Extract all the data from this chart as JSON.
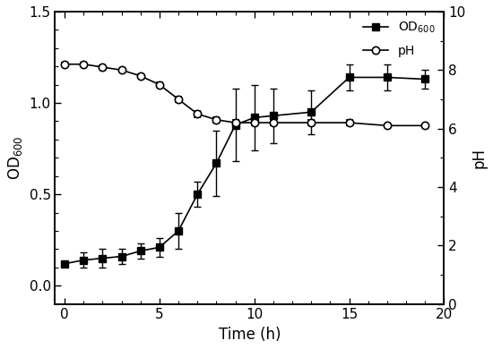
{
  "od_x": [
    0,
    1,
    2,
    3,
    4,
    5,
    6,
    7,
    8,
    9,
    10,
    11,
    13,
    15,
    17,
    19
  ],
  "od_y": [
    0.12,
    0.14,
    0.15,
    0.16,
    0.19,
    0.21,
    0.3,
    0.5,
    0.67,
    0.88,
    0.92,
    0.93,
    0.95,
    1.14,
    1.14,
    1.13
  ],
  "od_yerr": [
    0.01,
    0.04,
    0.05,
    0.04,
    0.04,
    0.05,
    0.1,
    0.07,
    0.18,
    0.2,
    0.18,
    0.15,
    0.12,
    0.07,
    0.07,
    0.05
  ],
  "ph_x": [
    0,
    1,
    2,
    3,
    4,
    5,
    6,
    7,
    8,
    9,
    10,
    11,
    13,
    15,
    17,
    19
  ],
  "ph_y": [
    8.2,
    8.2,
    8.1,
    8.0,
    7.8,
    7.5,
    7.0,
    6.5,
    6.3,
    6.2,
    6.2,
    6.2,
    6.2,
    6.2,
    6.1,
    6.1
  ],
  "ph_yerr": [
    0.05,
    0.05,
    0.05,
    0.05,
    0.05,
    0.08,
    0.1,
    0.1,
    0.1,
    0.1,
    0.1,
    0.1,
    0.1,
    0.1,
    0.05,
    0.05
  ],
  "od_label": "OD$_{600}$",
  "ph_label": "pH",
  "xlabel": "Time (h)",
  "ylabel_left": "OD$_{600}$",
  "ylabel_right": "pH",
  "xlim": [
    -0.5,
    20
  ],
  "ylim_left": [
    -0.1,
    1.5
  ],
  "ylim_right": [
    0,
    10
  ],
  "xticks": [
    0,
    5,
    10,
    15,
    20
  ],
  "yticks_left": [
    0.0,
    0.5,
    1.0,
    1.5
  ],
  "yticks_right": [
    0,
    2,
    4,
    6,
    8,
    10
  ],
  "line_color": "#000000",
  "background_color": "#ffffff",
  "capsize": 3,
  "linewidth": 1.2,
  "markersize": 6,
  "marker_od": "s",
  "marker_ph": "o"
}
